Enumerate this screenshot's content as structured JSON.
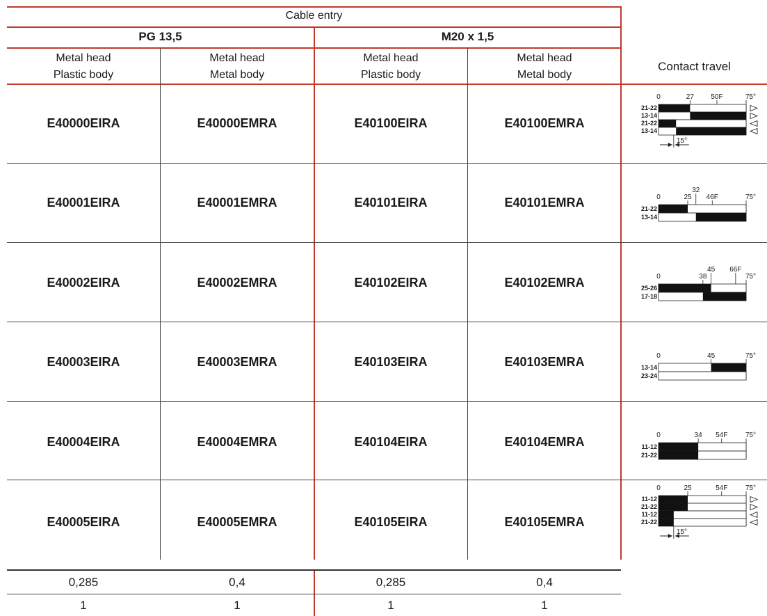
{
  "header": {
    "cable_entry": "Cable entry",
    "groups": [
      "PG 13,5",
      "M20 x 1,5"
    ],
    "columns": [
      [
        "Metal head",
        "Plastic body"
      ],
      [
        "Metal head",
        "Metal body"
      ],
      [
        "Metal head",
        "Plastic body"
      ],
      [
        "Metal head",
        "Metal body"
      ]
    ],
    "contact_travel": "Contact travel"
  },
  "rows": [
    {
      "codes": [
        "E40000EIRA",
        "E40000EMRA",
        "E40100EIRA",
        "E40100EMRA"
      ],
      "diagram": {
        "ticks": [
          {
            "v": 0,
            "t": "0"
          },
          {
            "v": 27,
            "t": "27"
          },
          {
            "v": 50,
            "t": "50F"
          },
          {
            "v": 75,
            "t": "75°"
          }
        ],
        "lines": [
          {
            "label": "21-22",
            "on": [
              [
                0,
                27
              ]
            ],
            "arrow": "right"
          },
          {
            "label": "13-14",
            "on": [
              [
                27,
                75
              ]
            ],
            "arrow": "right"
          },
          {
            "label": "21-22",
            "on": [
              [
                0,
                15
              ]
            ],
            "arrow": "left"
          },
          {
            "label": "13-14",
            "on": [
              [
                15,
                75
              ]
            ],
            "arrow": "left"
          }
        ],
        "hyst": "15°"
      }
    },
    {
      "codes": [
        "E40001EIRA",
        "E40001EMRA",
        "E40101EIRA",
        "E40101EMRA"
      ],
      "diagram": {
        "ticks": [
          {
            "v": 0,
            "t": "0"
          },
          {
            "v": 25,
            "t": "25"
          },
          {
            "v": 32,
            "t": "32",
            "high": true
          },
          {
            "v": 46,
            "t": "46F"
          },
          {
            "v": 75,
            "t": "75°"
          }
        ],
        "lines": [
          {
            "label": "21-22",
            "on": [
              [
                0,
                25
              ]
            ]
          },
          {
            "label": "13-14",
            "on": [
              [
                32,
                75
              ]
            ]
          }
        ]
      }
    },
    {
      "codes": [
        "E40002EIRA",
        "E40002EMRA",
        "E40102EIRA",
        "E40102EMRA"
      ],
      "diagram": {
        "ticks": [
          {
            "v": 0,
            "t": "0"
          },
          {
            "v": 38,
            "t": "38"
          },
          {
            "v": 45,
            "t": "45",
            "high": true
          },
          {
            "v": 66,
            "t": "66F",
            "high": true
          },
          {
            "v": 75,
            "t": "75°"
          }
        ],
        "lines": [
          {
            "label": "25-26",
            "on": [
              [
                0,
                45
              ]
            ]
          },
          {
            "label": "17-18",
            "on": [
              [
                38,
                75
              ]
            ]
          }
        ]
      }
    },
    {
      "codes": [
        "E40003EIRA",
        "E40003EMRA",
        "E40103EIRA",
        "E40103EMRA"
      ],
      "diagram": {
        "ticks": [
          {
            "v": 0,
            "t": "0"
          },
          {
            "v": 45,
            "t": "45"
          },
          {
            "v": 75,
            "t": "75°"
          }
        ],
        "lines": [
          {
            "label": "13-14",
            "on": [
              [
                45,
                75
              ]
            ]
          },
          {
            "label": "23-24",
            "on": []
          }
        ]
      }
    },
    {
      "codes": [
        "E40004EIRA",
        "E40004EMRA",
        "E40104EIRA",
        "E40104EMRA"
      ],
      "diagram": {
        "ticks": [
          {
            "v": 0,
            "t": "0"
          },
          {
            "v": 34,
            "t": "34"
          },
          {
            "v": 54,
            "t": "54F"
          },
          {
            "v": 75,
            "t": "75°"
          }
        ],
        "lines": [
          {
            "label": "11-12",
            "on": [
              [
                0,
                34
              ]
            ]
          },
          {
            "label": "21-22",
            "on": [
              [
                0,
                34
              ]
            ]
          }
        ]
      }
    },
    {
      "codes": [
        "E40005EIRA",
        "E40005EMRA",
        "E40105EIRA",
        "E40105EMRA"
      ],
      "diagram": {
        "ticks": [
          {
            "v": 0,
            "t": "0"
          },
          {
            "v": 25,
            "t": "25"
          },
          {
            "v": 54,
            "t": "54F"
          },
          {
            "v": 75,
            "t": "75°"
          }
        ],
        "lines": [
          {
            "label": "11-12",
            "on": [
              [
                0,
                25
              ]
            ],
            "arrow": "right"
          },
          {
            "label": "21-22",
            "on": [
              [
                0,
                25
              ]
            ],
            "arrow": "right"
          },
          {
            "label": "11-12",
            "on": [
              [
                0,
                13
              ]
            ],
            "arrow": "left"
          },
          {
            "label": "21-22",
            "on": [
              [
                0,
                13
              ]
            ],
            "arrow": "left"
          }
        ],
        "hyst": "15°"
      }
    }
  ],
  "footer": {
    "weights": [
      "0,285",
      "0,4",
      "0,285",
      "0,4"
    ],
    "qty": [
      "1",
      "1",
      "1",
      "1"
    ]
  }
}
